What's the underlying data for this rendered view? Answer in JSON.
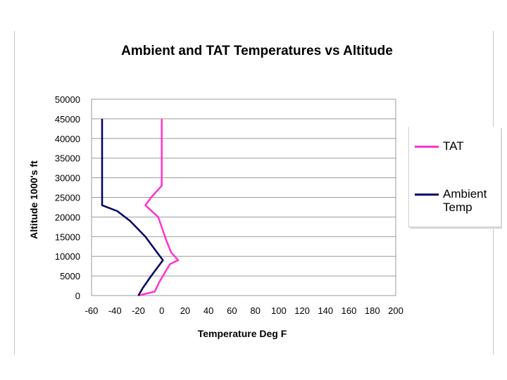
{
  "chart_data": {
    "type": "line",
    "title": "Ambient and TAT Temperatures vs Altitude",
    "xlabel": "Temperature Deg F",
    "ylabel": "Altitude 1000's ft",
    "xlim": [
      -60,
      200
    ],
    "ylim": [
      0,
      50000
    ],
    "x_ticks": [
      -60,
      -40,
      -20,
      0,
      20,
      40,
      60,
      80,
      100,
      120,
      140,
      160,
      180,
      200
    ],
    "y_ticks": [
      0,
      5000,
      10000,
      15000,
      20000,
      25000,
      30000,
      35000,
      40000,
      45000,
      50000
    ],
    "grid": "horizontal",
    "legend_position": "right",
    "series": [
      {
        "name": "TAT",
        "color": "#ff33cc",
        "points": [
          [
            -20,
            0
          ],
          [
            -6,
            1000
          ],
          [
            -2,
            3500
          ],
          [
            7,
            8000
          ],
          [
            14,
            9000
          ],
          [
            8,
            11000
          ],
          [
            4,
            14000
          ],
          [
            -3,
            20000
          ],
          [
            -14,
            23000
          ],
          [
            -9,
            25000
          ],
          [
            0,
            28000
          ],
          [
            0,
            30000
          ],
          [
            0,
            45000
          ]
        ]
      },
      {
        "name": "Ambient\nTemp",
        "color": "#000066",
        "points": [
          [
            -20,
            0
          ],
          [
            -16,
            2000
          ],
          [
            -9,
            5000
          ],
          [
            1,
            9000
          ],
          [
            -4,
            11000
          ],
          [
            -9,
            13000
          ],
          [
            -14,
            15000
          ],
          [
            -27,
            19000
          ],
          [
            -38,
            21500
          ],
          [
            -51,
            23000
          ],
          [
            -51,
            45000
          ]
        ]
      }
    ]
  }
}
